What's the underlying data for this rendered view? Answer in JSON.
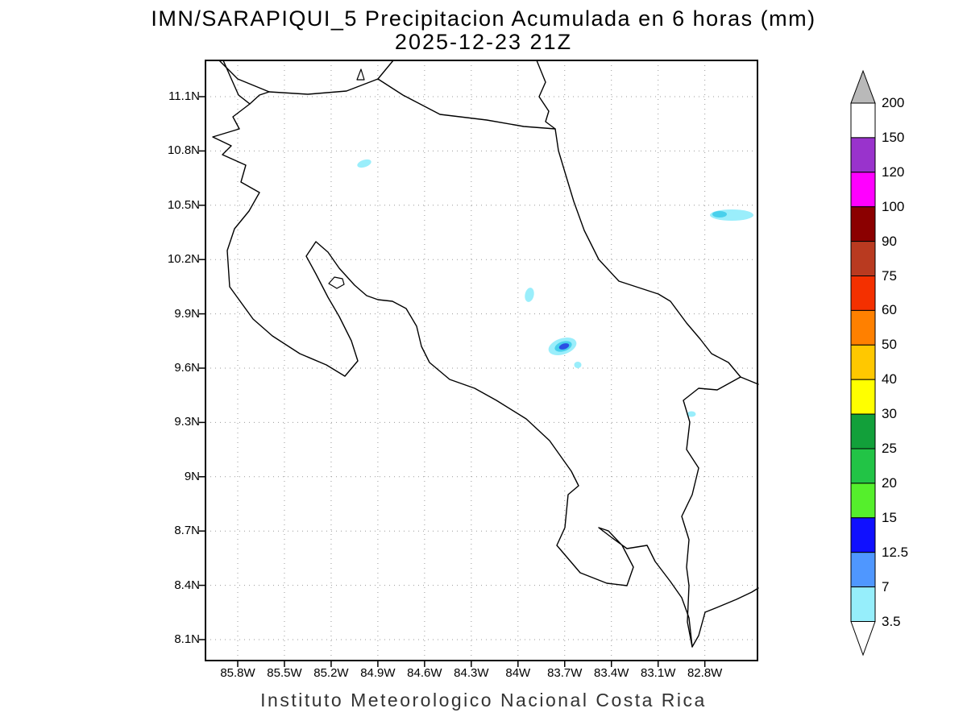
{
  "title": {
    "line1": "IMN/SARAPIQUI_5 Precipitacion Acumulada en 6 horas (mm)",
    "line2": "2025-12-23 21Z"
  },
  "footer": "Instituto Meteorologico Nacional Costa Rica",
  "axes": {
    "lat_labels": [
      "11.1N",
      "10.8N",
      "10.5N",
      "10.2N",
      "9.9N",
      "9.6N",
      "9.3N",
      "9N",
      "8.7N",
      "8.4N",
      "8.1N"
    ],
    "lon_labels": [
      "85.8W",
      "85.5W",
      "85.2W",
      "84.9W",
      "84.6W",
      "84.3W",
      "84W",
      "83.7W",
      "83.4W",
      "83.1W",
      "82.8W"
    ]
  },
  "colorbar": {
    "boundary_labels": [
      "200",
      "150",
      "120",
      "100",
      "90",
      "75",
      "60",
      "50",
      "40",
      "30",
      "25",
      "20",
      "15",
      "12.5",
      "7",
      "3.5"
    ],
    "band_colors_top_to_bottom": [
      "#ffffff",
      "#9933cc",
      "#ff00ff",
      "#8b0000",
      "#b93a20",
      "#f43000",
      "#ff8000",
      "#ffc800",
      "#ffff00",
      "#12a03a",
      "#22c446",
      "#55ef2c",
      "#1010ff",
      "#4f97ff",
      "#96eefb"
    ],
    "above_max_color": "#b9b9b9",
    "below_min_color": "#ffffff"
  },
  "map_colors": {
    "coastline": "#000000",
    "grid": "#999999",
    "precip_light": "#9aeefb",
    "precip_medium": "#49d0ec",
    "precip_blue": "#2a50e4"
  },
  "chart_data": {
    "type": "heatmap",
    "title": "IMN/SARAPIQUI_5 Precipitacion Acumulada en 6 horas (mm)",
    "valid_time": "2025-12-23 21Z",
    "units": "mm",
    "region": "Costa Rica",
    "lon_range_W": [
      85.8,
      82.8
    ],
    "lat_range_N": [
      8.1,
      11.1
    ],
    "lon_tick_values_W": [
      85.8,
      85.5,
      85.2,
      84.9,
      84.6,
      84.3,
      84.0,
      83.7,
      83.4,
      83.1,
      82.8
    ],
    "lat_tick_values_N": [
      11.1,
      10.8,
      10.5,
      10.2,
      9.9,
      9.6,
      9.3,
      9.0,
      8.7,
      8.4,
      8.1
    ],
    "contour_levels_mm": [
      3.5,
      7,
      12.5,
      15,
      20,
      25,
      30,
      40,
      50,
      60,
      75,
      90,
      100,
      120,
      150,
      200
    ],
    "grid": "dotted",
    "legend_position": "right",
    "precip_areas": [
      {
        "lon_W": 85.0,
        "lat_N": 10.73,
        "peak_band_mm": "3.5-7"
      },
      {
        "lon_W": 82.65,
        "lat_N": 10.46,
        "peak_band_mm": "7-12.5"
      },
      {
        "lon_W": 83.93,
        "lat_N": 10.0,
        "peak_band_mm": "3.5-7"
      },
      {
        "lon_W": 83.73,
        "lat_N": 9.72,
        "peak_band_mm": "12.5-15"
      },
      {
        "lon_W": 83.62,
        "lat_N": 9.6,
        "peak_band_mm": "3.5-7"
      },
      {
        "lon_W": 82.89,
        "lat_N": 9.35,
        "peak_band_mm": "3.5-7"
      }
    ],
    "source": "Instituto Meteorologico Nacional Costa Rica"
  }
}
